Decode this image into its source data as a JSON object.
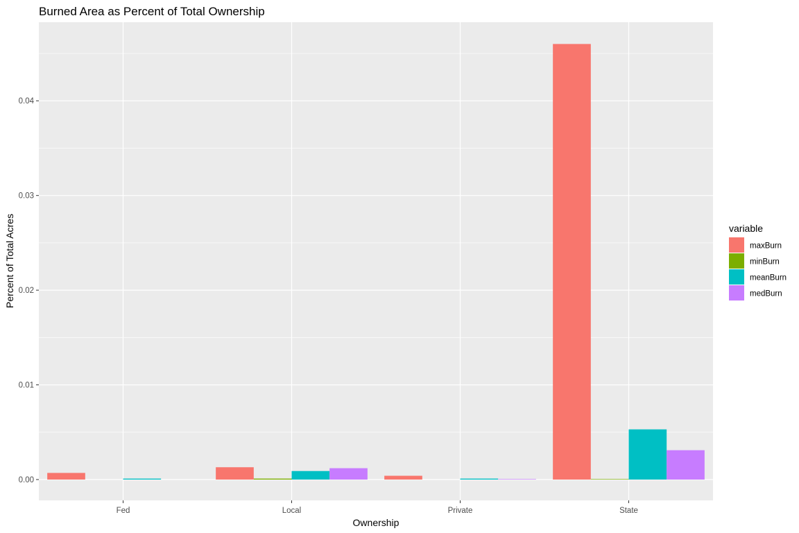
{
  "chart_data": {
    "type": "bar",
    "title": "Burned Area as Percent of Total Ownership",
    "xlabel": "Ownership",
    "ylabel": "Percent of Total Acres",
    "categories": [
      "Fed",
      "Local",
      "Private",
      "State"
    ],
    "series": [
      {
        "name": "maxBurn",
        "color": "#F8766D",
        "values": [
          0.0007,
          0.0013,
          0.0004,
          0.046
        ]
      },
      {
        "name": "minBurn",
        "color": "#7CAE00",
        "values": [
          0.0,
          0.0001,
          0.0,
          5e-05
        ]
      },
      {
        "name": "meanBurn",
        "color": "#00BFC4",
        "values": [
          0.0001,
          0.0009,
          0.0001,
          0.0053
        ]
      },
      {
        "name": "medBurn",
        "color": "#C77CFF",
        "values": [
          0.0,
          0.0012,
          5e-05,
          0.0031
        ]
      }
    ],
    "ylim": [
      -0.0022,
      0.0483
    ],
    "yticks": [
      0.0,
      0.01,
      0.02,
      0.03,
      0.04
    ],
    "ytick_labels": [
      "0.00",
      "0.01",
      "0.02",
      "0.03",
      "0.04"
    ],
    "grid": true,
    "legend_title": "variable",
    "legend_position": "right",
    "panel_color": "#EBEBEB",
    "grid_color": "#FFFFFF"
  }
}
